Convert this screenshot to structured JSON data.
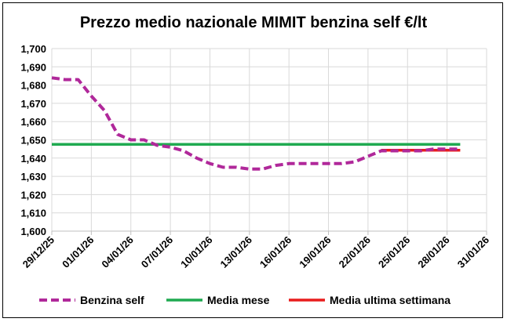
{
  "chart_data": {
    "type": "line",
    "title": "Prezzo medio nazionale MIMIT benzina self €/lt",
    "xlabel": "",
    "ylabel": "",
    "x_ticks": [
      "29/12/25",
      "01/01/26",
      "04/01/26",
      "07/01/26",
      "10/01/26",
      "13/01/26",
      "16/01/26",
      "19/01/26",
      "22/01/26",
      "25/01/26",
      "28/01/26",
      "31/01/26"
    ],
    "y_ticks": [
      "1,600",
      "1,610",
      "1,620",
      "1,630",
      "1,640",
      "1,650",
      "1,660",
      "1,670",
      "1,680",
      "1,690",
      "1,700"
    ],
    "xlim": [
      "2025-12-29",
      "2026-01-31"
    ],
    "ylim": [
      1.6,
      1.7
    ],
    "grid": true,
    "legend_position": "bottom",
    "series": [
      {
        "name": "Benzina self",
        "color": "#b0289a",
        "style": "dashed",
        "points": [
          [
            "2025-12-29",
            1.684
          ],
          [
            "2025-12-30",
            1.683
          ],
          [
            "2025-12-31",
            1.683
          ],
          [
            "2026-01-01",
            1.674
          ],
          [
            "2026-01-02",
            1.666
          ],
          [
            "2026-01-03",
            1.653
          ],
          [
            "2026-01-04",
            1.65
          ],
          [
            "2026-01-05",
            1.65
          ],
          [
            "2026-01-06",
            1.647
          ],
          [
            "2026-01-07",
            1.646
          ],
          [
            "2026-01-08",
            1.644
          ],
          [
            "2026-01-09",
            1.64
          ],
          [
            "2026-01-10",
            1.637
          ],
          [
            "2026-01-11",
            1.635
          ],
          [
            "2026-01-12",
            1.635
          ],
          [
            "2026-01-13",
            1.634
          ],
          [
            "2026-01-14",
            1.634
          ],
          [
            "2026-01-15",
            1.636
          ],
          [
            "2026-01-16",
            1.637
          ],
          [
            "2026-01-17",
            1.637
          ],
          [
            "2026-01-18",
            1.637
          ],
          [
            "2026-01-19",
            1.637
          ],
          [
            "2026-01-20",
            1.637
          ],
          [
            "2026-01-21",
            1.638
          ],
          [
            "2026-01-22",
            1.641
          ],
          [
            "2026-01-23",
            1.644
          ],
          [
            "2026-01-24",
            1.644
          ],
          [
            "2026-01-25",
            1.644
          ],
          [
            "2026-01-26",
            1.644
          ],
          [
            "2026-01-27",
            1.645
          ],
          [
            "2026-01-28",
            1.645
          ],
          [
            "2026-01-29",
            1.645
          ]
        ]
      },
      {
        "name": "Media mese",
        "color": "#1faa50",
        "style": "solid",
        "points": [
          [
            "2025-12-29",
            1.6475
          ],
          [
            "2026-01-29",
            1.6475
          ]
        ]
      },
      {
        "name": "Media ultima settimana",
        "color": "#e81c1c",
        "style": "solid",
        "points": [
          [
            "2026-01-23",
            1.6443
          ],
          [
            "2026-01-29",
            1.6443
          ]
        ]
      }
    ]
  }
}
